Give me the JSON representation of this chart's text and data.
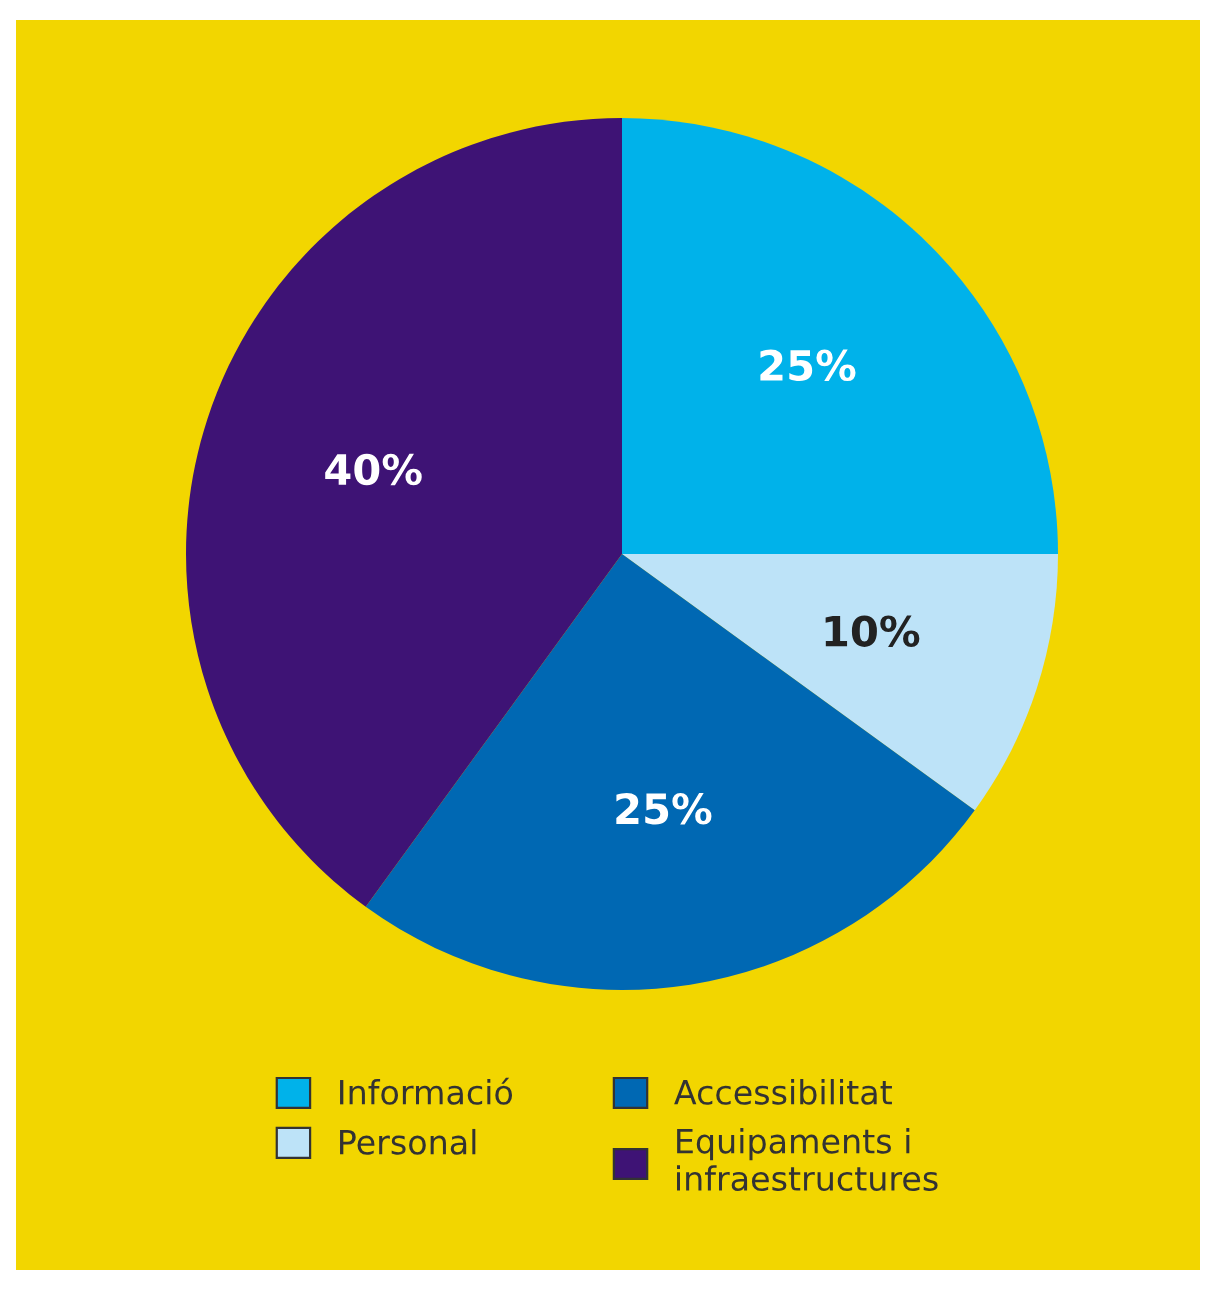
{
  "chart_data": {
    "type": "pie",
    "categories": [
      "Informació",
      "Personal",
      "Accessibilitat",
      "Equipaments i\ninfraestructures"
    ],
    "values": [
      25,
      10,
      25,
      40
    ],
    "colors": [
      "#00b2ea",
      "#bde3f8",
      "#0068b3",
      "#3e1375"
    ],
    "value_labels": [
      "25%",
      "10%",
      "25%",
      "40%"
    ],
    "legend": "bottom"
  }
}
